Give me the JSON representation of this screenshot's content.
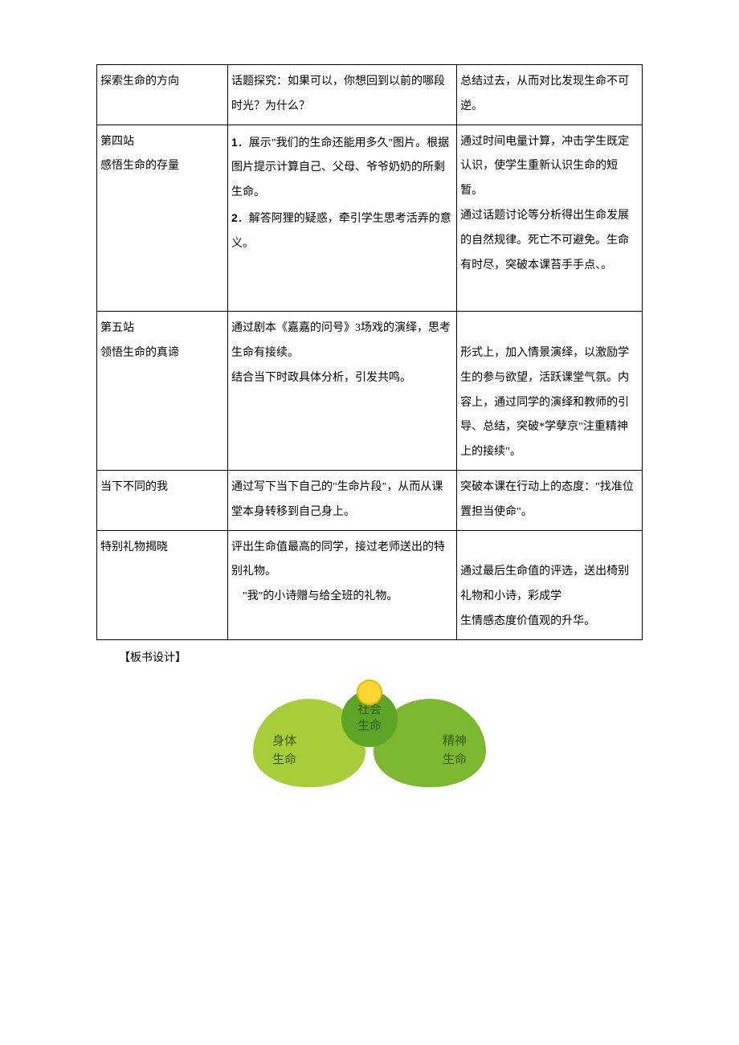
{
  "table": {
    "rows": [
      {
        "c1": "探索生命的方向",
        "c2": "话题探究：如果可以，你想回到以前的哪段时光？为什么？",
        "c3": "总结过去，从而对比发现生命不可逆。"
      },
      {
        "c1a": "第四站",
        "c1b": "感悟生命的存量",
        "c2_parts": [
          {
            "n": "1",
            "t": "．展示\"我们的生命还能用多久\"图片。根据图片提示计算自己、父母、爷爷奶奶的所剩生命。"
          },
          {
            "n": "2",
            "t": "．解答阿狸的疑惑，牵引学生思考活弄的意义。"
          }
        ],
        "c3": "通过时间电量计算，冲击学生既定认识，使学生重新认识生命的短暂。\n通过话题讨论等分析得出生命发展的自然规律。死亡不可避免。生命有时尽，突破本课苔手手点、。"
      },
      {
        "c1a": "第五站",
        "c1b": "领悟生命的真谛",
        "c2": "通过剧本《嘉嘉的问号》3场戏的演绎，思考生命有接续。\n结合当下时政具体分析，引发共鸣。",
        "c3": "形式上，加入情景演绎，以激励学生的参与欲望，活跃课堂气氛。内容上，通过同学的演绎和教师的引导、总结，突破*学孽京\"注重精神上的接续\"。"
      },
      {
        "c1": "当下不同的我",
        "c2": "通过写下当下自己的\"生命片段\"，从而从课堂本身转移到自己身上。",
        "c3": "突破本课在行动上的态度：\"找准位置担当使命\"。"
      },
      {
        "c1": "特别礼物揭晓",
        "c2": "评出生命值最高的同学，接过老师送出的特别礼物。\n　\"我\"的小诗赠与给全班的礼物。",
        "c3": "通过最后生命值的评选，送出椅别礼物和小诗，彩成学\n生情感态度价值观的升华。"
      }
    ]
  },
  "section_label": "【板书设计】",
  "diagram": {
    "colors": {
      "left_petal": "#a6ce39",
      "right_petal": "#7cb82f",
      "center": "#5da526",
      "sun": "#ffd633",
      "text": "#3a5a1a"
    },
    "left": {
      "l1": "身体",
      "l2": "生命"
    },
    "right": {
      "l1": "精神",
      "l2": "生命"
    },
    "center": {
      "l1": "社会",
      "l2": "生命"
    }
  }
}
